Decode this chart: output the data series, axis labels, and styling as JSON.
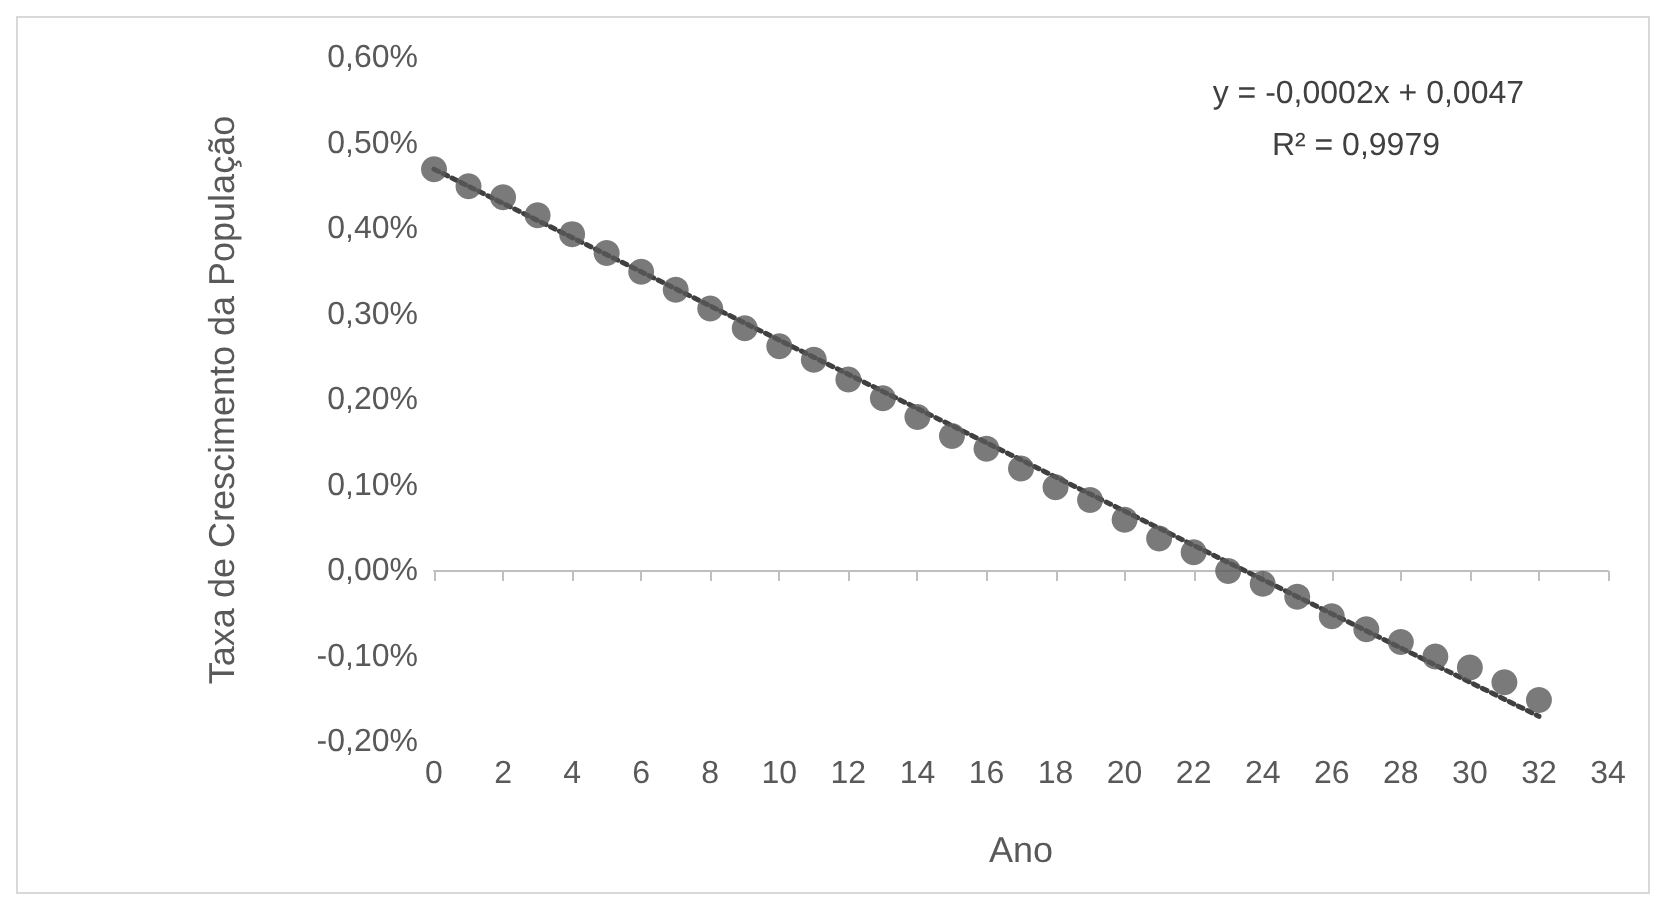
{
  "chart_data": {
    "type": "scatter",
    "xlabel": "Ano",
    "ylabel": "Taxa de Crescimento da População",
    "x": [
      0,
      1,
      2,
      3,
      4,
      5,
      6,
      7,
      8,
      9,
      10,
      11,
      12,
      13,
      14,
      15,
      16,
      17,
      18,
      19,
      20,
      21,
      22,
      23,
      24,
      25,
      26,
      27,
      28,
      29,
      30,
      31,
      32
    ],
    "series": [
      {
        "color": "#595959",
        "marker": "circle",
        "values": [
          0.47,
          0.45,
          0.437,
          0.416,
          0.394,
          0.372,
          0.35,
          0.329,
          0.307,
          0.284,
          0.263,
          0.247,
          0.224,
          0.202,
          0.18,
          0.158,
          0.143,
          0.12,
          0.098,
          0.083,
          0.06,
          0.038,
          0.022,
          0.0,
          -0.015,
          -0.03,
          -0.053,
          -0.068,
          -0.083,
          -0.1,
          -0.113,
          -0.13,
          -0.151
        ]
      },
      {
        "type": "line",
        "color": "#404040",
        "line_style": "dotted",
        "marker": "none",
        "x": [
          0,
          32
        ],
        "values": [
          0.47,
          -0.17
        ]
      }
    ],
    "annotations": [
      "y = -0,0002x + 0,0047",
      "R² = 0,9979"
    ],
    "xlim": [
      0,
      34
    ],
    "xticks": [
      0,
      2,
      4,
      6,
      8,
      10,
      12,
      14,
      16,
      18,
      20,
      22,
      24,
      26,
      28,
      30,
      32,
      34
    ],
    "ylim": [
      -0.2,
      0.6
    ],
    "yticks": [
      {
        "value": -0.2,
        "label": "-0,20%"
      },
      {
        "value": -0.1,
        "label": "-0,10%"
      },
      {
        "value": 0,
        "label": "0,00%"
      },
      {
        "value": 0.1,
        "label": "0,10%"
      },
      {
        "value": 0.2,
        "label": "0,20%"
      },
      {
        "value": 0.3,
        "label": "0,30%"
      },
      {
        "value": 0.4,
        "label": "0,40%"
      },
      {
        "value": 0.5,
        "label": "0,50%"
      },
      {
        "value": 0.6,
        "label": "0,60%"
      }
    ]
  }
}
